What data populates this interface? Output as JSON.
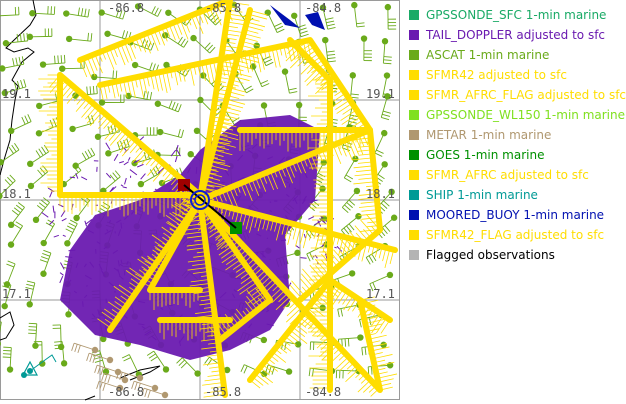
{
  "map": {
    "lon_labels_top": [
      "-86.8",
      "-85.8",
      "-84.8"
    ],
    "lon_labels_bottom": [
      "-86.8",
      "-85.8",
      "-84.8"
    ],
    "lat_labels_left": [
      "19.1",
      "18.1",
      "17.1"
    ],
    "lat_labels_right": [
      "19.1",
      "18.1",
      "17.1"
    ],
    "grid_color": "#9a9a9a",
    "coastline_color": "#000000",
    "storm_center_icon": "hurricane-center-circle-icon",
    "storm_center_color": "#1020d0",
    "past_position_color": "#a00000",
    "forecast_position_color": "#009000",
    "track_arrow_color": "#000000"
  },
  "legend": {
    "items": [
      {
        "label": "GPSSONDE_SFC 1-min marine",
        "color": "#1aaa66"
      },
      {
        "label": "TAIL_DOPPLER adjusted to sfc",
        "color": "#6a1ab0"
      },
      {
        "label": "ASCAT 1-min marine",
        "color": "#6aaa1a"
      },
      {
        "label": "SFMR42 adjusted to sfc",
        "color": "#ffdd00"
      },
      {
        "label": "SFMR_AFRC_FLAG adjusted to sfc",
        "color": "#ffdd00"
      },
      {
        "label": "GPSSONDE_WL150 1-min marine",
        "color": "#80e020"
      },
      {
        "label": "METAR 1-min marine",
        "color": "#b09870"
      },
      {
        "label": "GOES 1-min marine",
        "color": "#009000"
      },
      {
        "label": "SFMR_AFRC adjusted to sfc",
        "color": "#ffdd00"
      },
      {
        "label": "SHIP 1-min marine",
        "color": "#009a96"
      },
      {
        "label": "MOORED_BUOY 1-min marine",
        "color": "#0010b0"
      },
      {
        "label": "SFMR42_FLAG adjusted to sfc",
        "color": "#ffdd00"
      },
      {
        "label": "Flagged observations",
        "color": "#b4b4b4",
        "text_color": "#000000"
      }
    ]
  }
}
